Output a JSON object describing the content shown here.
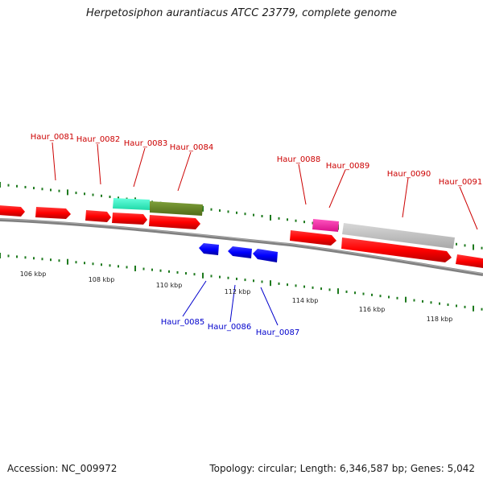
{
  "title": "Herpetosiphon aurantiacus ATCC 23779, complete genome",
  "footer": {
    "accession": "Accession: NC_009972",
    "summary": "Topology: circular; Length: 6,346,587 bp; Genes: 5,042"
  },
  "colors": {
    "forward_label": "#cc0000",
    "reverse_label": "#0000cc",
    "tick": "#1e7a1e",
    "backbone": "#808080"
  },
  "kbp_labels": [
    "106 kbp",
    "108 kbp",
    "110 kbp",
    "112 kbp",
    "114 kbp",
    "116 kbp",
    "118 kbp"
  ],
  "forward_labels": [
    "Haur_0081",
    "Haur_0082",
    "Haur_0083",
    "Haur_0084",
    "Haur_0088",
    "Haur_0089",
    "Haur_0090",
    "Haur_0091"
  ],
  "reverse_labels": [
    "Haur_0085",
    "Haur_0086",
    "Haur_0087"
  ],
  "feature_colors": {
    "cds_forward": "#ff0000",
    "cds_reverse": "#0000ff",
    "teal_feature": "#33ffcc",
    "olive_feature": "#6b8e23",
    "magenta_feature": "#ff1fa5",
    "gray_feature": "#c0c0c0"
  }
}
